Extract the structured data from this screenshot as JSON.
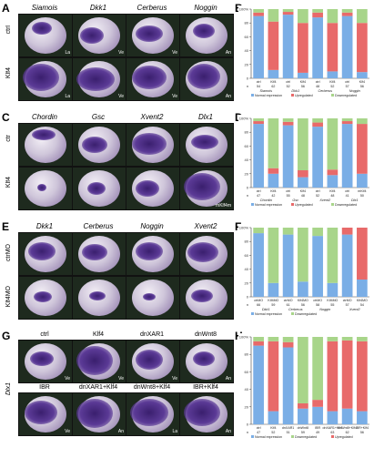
{
  "panels": {
    "A": {
      "letter": "A",
      "genes": [
        "Siamois",
        "Dkk1",
        "Cerberus",
        "Noggin"
      ],
      "rows": [
        "ctrl",
        "Klf4"
      ],
      "views": [
        [
          "La",
          "Ve",
          "Ve",
          "An"
        ],
        [
          "La",
          "Ve",
          "Ve",
          "An"
        ]
      ]
    },
    "C": {
      "letter": "C",
      "genes": [
        "Chordin",
        "Gsc",
        "Xvent2",
        "Dlx1"
      ],
      "rows": [
        "ctr",
        "Klf4"
      ],
      "views": [
        [
          "",
          "",
          "",
          ""
        ],
        [
          "",
          "",
          "",
          "mKlf4m"
        ]
      ]
    },
    "E": {
      "letter": "E",
      "genes": [
        "Dkk1",
        "Cerberus",
        "Noggin",
        "Xvent2"
      ],
      "rows": [
        "ctrMO",
        "Klf4MO"
      ]
    },
    "G": {
      "letter": "G",
      "side_label": "Dlx1",
      "conds_top": [
        "ctrl",
        "Klf4",
        "dnXAR1",
        "dnWnt8"
      ],
      "conds_bottom": [
        "IBR",
        "dnXAR1+Klf4",
        "dnWnt8+Klf4",
        "IBR+Klf4"
      ],
      "views_top": [
        "Ve",
        "Ve",
        "Ve",
        "An"
      ],
      "views_bottom": [
        "Ve",
        "An",
        "La",
        "An"
      ]
    }
  },
  "chart_data": [
    {
      "panel": "B",
      "type": "bar",
      "stacked": true,
      "ylim": [
        0,
        100
      ],
      "yticks": [
        "0",
        "20",
        "40",
        "60",
        "80",
        "100"
      ],
      "categories": [
        "ctrl",
        "Klf4",
        "ctrl",
        "Klf4",
        "ctrl",
        "Klf4",
        "ctrl",
        "Klf4"
      ],
      "groups": [
        "Siamois",
        "Dkk1",
        "Cerberus",
        "Noggin"
      ],
      "n_label": "n",
      "n": [
        "54",
        "62",
        "52",
        "56",
        "48",
        "52",
        "57",
        "56"
      ],
      "series": [
        {
          "name": "Normal expression",
          "color": "#7aaee6",
          "values": [
            90,
            12,
            92,
            8,
            88,
            10,
            90,
            9
          ]
        },
        {
          "name": "Upregulated",
          "color": "#e86a6a",
          "values": [
            5,
            70,
            4,
            72,
            7,
            70,
            5,
            71
          ]
        },
        {
          "name": "Downregulated",
          "color": "#a8d58a",
          "values": [
            5,
            18,
            4,
            20,
            5,
            20,
            5,
            20
          ]
        }
      ],
      "legend": [
        "Normal expression",
        "Upregulated",
        "Downregulated"
      ]
    },
    {
      "panel": "D",
      "type": "bar",
      "stacked": true,
      "ylim": [
        0,
        100
      ],
      "yticks": [
        "0",
        "20",
        "40",
        "60",
        "80",
        "100"
      ],
      "categories": [
        "ctrl",
        "Klf4",
        "ctrl",
        "Klf4",
        "ctrl",
        "Klf4",
        "ctrl",
        "mKlf4"
      ],
      "groups": [
        "Chordin",
        "Gsc",
        "Xvent2",
        "Dlx1"
      ],
      "n_label": "n",
      "n": [
        "47",
        "42",
        "55",
        "48",
        "52",
        "48",
        "41",
        "50"
      ],
      "series": [
        {
          "name": "Normal expression",
          "color": "#7aaee6",
          "values": [
            92,
            20,
            90,
            15,
            88,
            18,
            92,
            20
          ]
        },
        {
          "name": "Upregulated",
          "color": "#e86a6a",
          "values": [
            4,
            8,
            5,
            10,
            6,
            8,
            4,
            72
          ]
        },
        {
          "name": "Downregulated",
          "color": "#a8d58a",
          "values": [
            4,
            72,
            5,
            75,
            6,
            74,
            4,
            8
          ]
        }
      ],
      "legend": [
        "Normal expression",
        "Upregulated",
        "Downregulated"
      ]
    },
    {
      "panel": "F",
      "type": "bar",
      "stacked": true,
      "ylim": [
        0,
        100
      ],
      "yticks": [
        "0",
        "20",
        "40",
        "60",
        "80",
        "100"
      ],
      "categories": [
        "ctrMO",
        "Klf4MO",
        "ctrMO",
        "Klf4MO",
        "ctrMO",
        "Klf4MO",
        "ctrMO",
        "Klf4MO"
      ],
      "groups": [
        "Dkk1",
        "Cerberus",
        "Noggin",
        "Xvent2"
      ],
      "n_label": "n",
      "n": [
        "66",
        "59",
        "61",
        "56",
        "58",
        "55",
        "57",
        "54"
      ],
      "series": [
        {
          "name": "Normal expression",
          "color": "#7aaee6",
          "values": [
            92,
            20,
            90,
            22,
            88,
            20,
            90,
            25
          ]
        },
        {
          "name": "Upregulated",
          "color": "#e86a6a",
          "values": [
            0,
            0,
            0,
            0,
            0,
            0,
            10,
            75
          ]
        },
        {
          "name": "Downregulated",
          "color": "#a8d58a",
          "values": [
            8,
            80,
            10,
            78,
            12,
            80,
            0,
            0
          ]
        }
      ],
      "legend": [
        "Normal expression",
        "Downregulated"
      ]
    },
    {
      "panel": "H",
      "type": "bar",
      "stacked": true,
      "ylim": [
        0,
        100
      ],
      "yticks": [
        "0",
        "20",
        "40",
        "60",
        "80",
        "100"
      ],
      "categories": [
        "ctrl",
        "Klf4",
        "dnXAR1",
        "dnWnt8",
        "IBR",
        "dnXAR1+Klf4",
        "dnWnt8+Klf4",
        "IBR+Klf4"
      ],
      "n_label": "n",
      "n": [
        "47",
        "52",
        "51",
        "59",
        "49",
        "63",
        "62",
        "56"
      ],
      "series": [
        {
          "name": "Normal expression",
          "color": "#7aaee6",
          "values": [
            90,
            15,
            88,
            18,
            20,
            15,
            18,
            15
          ]
        },
        {
          "name": "Upregulated",
          "color": "#e86a6a",
          "values": [
            5,
            80,
            6,
            6,
            8,
            80,
            78,
            80
          ]
        },
        {
          "name": "Downregulated",
          "color": "#a8d58a",
          "values": [
            5,
            5,
            6,
            76,
            72,
            5,
            4,
            5
          ]
        }
      ],
      "legend": [
        "Normal expression",
        "Downregulated",
        "Upregulated"
      ]
    }
  ]
}
